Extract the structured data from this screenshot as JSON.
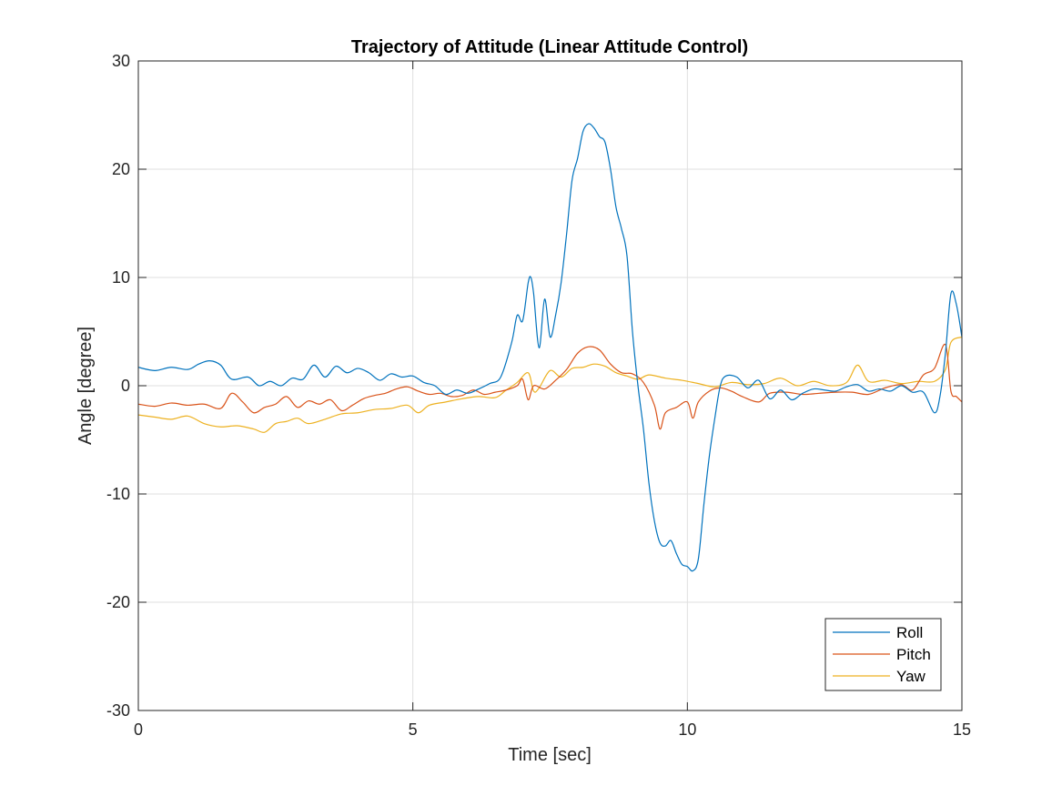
{
  "chart_data": {
    "type": "line",
    "title": "Trajectory of Attitude (Linear Attitude Control)",
    "xlabel": "Time [sec]",
    "ylabel": "Angle [degree]",
    "xlim": [
      0,
      15
    ],
    "ylim": [
      -30,
      30
    ],
    "xticks": [
      0,
      5,
      10,
      15
    ],
    "yticks": [
      -30,
      -20,
      -10,
      0,
      10,
      20,
      30
    ],
    "xtick_labels": [
      "0",
      "5",
      "10",
      "15"
    ],
    "ytick_labels": [
      "-30",
      "-20",
      "-10",
      "0",
      "10",
      "20",
      "30"
    ],
    "grid": true,
    "legend_position": "bottom-right",
    "series": [
      {
        "name": "Roll",
        "color": "#0072BD",
        "points": [
          [
            0,
            1.7
          ],
          [
            0.3,
            1.4
          ],
          [
            0.6,
            1.7
          ],
          [
            0.9,
            1.5
          ],
          [
            1.1,
            2.0
          ],
          [
            1.3,
            2.3
          ],
          [
            1.5,
            1.9
          ],
          [
            1.7,
            0.6
          ],
          [
            2.0,
            0.8
          ],
          [
            2.2,
            0.0
          ],
          [
            2.4,
            0.4
          ],
          [
            2.6,
            0.0
          ],
          [
            2.8,
            0.7
          ],
          [
            3.0,
            0.6
          ],
          [
            3.2,
            1.9
          ],
          [
            3.4,
            0.8
          ],
          [
            3.6,
            1.8
          ],
          [
            3.8,
            1.2
          ],
          [
            4.0,
            1.6
          ],
          [
            4.2,
            1.2
          ],
          [
            4.4,
            0.5
          ],
          [
            4.6,
            1.1
          ],
          [
            4.8,
            0.8
          ],
          [
            5.0,
            0.9
          ],
          [
            5.2,
            0.3
          ],
          [
            5.4,
            0.0
          ],
          [
            5.6,
            -0.8
          ],
          [
            5.8,
            -0.4
          ],
          [
            6.0,
            -0.7
          ],
          [
            6.2,
            -0.3
          ],
          [
            6.4,
            0.2
          ],
          [
            6.6,
            0.8
          ],
          [
            6.8,
            4.0
          ],
          [
            6.9,
            6.5
          ],
          [
            7.0,
            6.0
          ],
          [
            7.1,
            9.5
          ],
          [
            7.15,
            10.0
          ],
          [
            7.2,
            8.5
          ],
          [
            7.3,
            3.5
          ],
          [
            7.4,
            8.0
          ],
          [
            7.5,
            4.5
          ],
          [
            7.6,
            6.5
          ],
          [
            7.7,
            9.5
          ],
          [
            7.8,
            14.0
          ],
          [
            7.9,
            19.0
          ],
          [
            8.0,
            21.0
          ],
          [
            8.1,
            23.5
          ],
          [
            8.2,
            24.2
          ],
          [
            8.3,
            23.8
          ],
          [
            8.4,
            23.0
          ],
          [
            8.5,
            22.5
          ],
          [
            8.6,
            20.0
          ],
          [
            8.7,
            16.5
          ],
          [
            8.8,
            14.5
          ],
          [
            8.9,
            12.0
          ],
          [
            9.0,
            5.0
          ],
          [
            9.1,
            0.0
          ],
          [
            9.2,
            -4.0
          ],
          [
            9.3,
            -9.0
          ],
          [
            9.4,
            -12.5
          ],
          [
            9.5,
            -14.5
          ],
          [
            9.6,
            -14.8
          ],
          [
            9.7,
            -14.3
          ],
          [
            9.8,
            -15.5
          ],
          [
            9.9,
            -16.5
          ],
          [
            10.0,
            -16.7
          ],
          [
            10.1,
            -17.1
          ],
          [
            10.2,
            -16.0
          ],
          [
            10.3,
            -11.0
          ],
          [
            10.4,
            -6.5
          ],
          [
            10.5,
            -3.0
          ],
          [
            10.6,
            0.0
          ],
          [
            10.7,
            0.9
          ],
          [
            10.9,
            0.8
          ],
          [
            11.1,
            -0.2
          ],
          [
            11.3,
            0.5
          ],
          [
            11.5,
            -1.2
          ],
          [
            11.7,
            -0.4
          ],
          [
            11.9,
            -1.3
          ],
          [
            12.1,
            -0.7
          ],
          [
            12.3,
            -0.3
          ],
          [
            12.5,
            -0.4
          ],
          [
            12.7,
            -0.5
          ],
          [
            12.9,
            -0.1
          ],
          [
            13.1,
            0.1
          ],
          [
            13.3,
            -0.5
          ],
          [
            13.5,
            -0.3
          ],
          [
            13.7,
            -0.5
          ],
          [
            13.9,
            0.0
          ],
          [
            14.1,
            -0.6
          ],
          [
            14.3,
            -0.6
          ],
          [
            14.5,
            -2.5
          ],
          [
            14.6,
            -1.0
          ],
          [
            14.7,
            3.0
          ],
          [
            14.8,
            8.5
          ],
          [
            14.9,
            7.5
          ],
          [
            15.0,
            4.5
          ]
        ]
      },
      {
        "name": "Pitch",
        "color": "#D95319",
        "points": [
          [
            0,
            -1.7
          ],
          [
            0.3,
            -1.9
          ],
          [
            0.6,
            -1.6
          ],
          [
            0.9,
            -1.8
          ],
          [
            1.2,
            -1.7
          ],
          [
            1.5,
            -2.1
          ],
          [
            1.7,
            -0.7
          ],
          [
            1.9,
            -1.5
          ],
          [
            2.1,
            -2.5
          ],
          [
            2.3,
            -2.0
          ],
          [
            2.5,
            -1.7
          ],
          [
            2.7,
            -1.0
          ],
          [
            2.9,
            -2.0
          ],
          [
            3.1,
            -1.4
          ],
          [
            3.3,
            -1.7
          ],
          [
            3.5,
            -1.3
          ],
          [
            3.7,
            -2.3
          ],
          [
            3.9,
            -1.8
          ],
          [
            4.1,
            -1.2
          ],
          [
            4.3,
            -0.9
          ],
          [
            4.5,
            -0.7
          ],
          [
            4.7,
            -0.3
          ],
          [
            4.9,
            -0.1
          ],
          [
            5.1,
            -0.5
          ],
          [
            5.3,
            -0.8
          ],
          [
            5.5,
            -0.7
          ],
          [
            5.7,
            -1.0
          ],
          [
            5.9,
            -0.9
          ],
          [
            6.1,
            -0.4
          ],
          [
            6.3,
            -0.8
          ],
          [
            6.5,
            -0.6
          ],
          [
            6.7,
            -0.4
          ],
          [
            6.9,
            0.0
          ],
          [
            7.0,
            0.6
          ],
          [
            7.1,
            -1.3
          ],
          [
            7.2,
            0.0
          ],
          [
            7.4,
            -0.3
          ],
          [
            7.6,
            0.5
          ],
          [
            7.8,
            1.5
          ],
          [
            8.0,
            3.0
          ],
          [
            8.2,
            3.6
          ],
          [
            8.4,
            3.3
          ],
          [
            8.6,
            2.0
          ],
          [
            8.8,
            1.2
          ],
          [
            9.0,
            1.1
          ],
          [
            9.2,
            0.3
          ],
          [
            9.4,
            -1.8
          ],
          [
            9.5,
            -4.0
          ],
          [
            9.6,
            -2.5
          ],
          [
            9.8,
            -2.0
          ],
          [
            10.0,
            -1.5
          ],
          [
            10.1,
            -3.0
          ],
          [
            10.2,
            -1.5
          ],
          [
            10.4,
            -0.5
          ],
          [
            10.6,
            -0.2
          ],
          [
            10.8,
            -0.5
          ],
          [
            11.0,
            -1.0
          ],
          [
            11.3,
            -1.5
          ],
          [
            11.5,
            -0.7
          ],
          [
            11.8,
            -0.6
          ],
          [
            12.1,
            -0.8
          ],
          [
            12.4,
            -0.7
          ],
          [
            12.7,
            -0.6
          ],
          [
            13.0,
            -0.6
          ],
          [
            13.3,
            -0.8
          ],
          [
            13.6,
            -0.2
          ],
          [
            13.9,
            0.1
          ],
          [
            14.1,
            -0.4
          ],
          [
            14.3,
            1.0
          ],
          [
            14.5,
            1.6
          ],
          [
            14.7,
            3.8
          ],
          [
            14.8,
            -0.5
          ],
          [
            14.9,
            -1.0
          ],
          [
            15.0,
            -1.5
          ]
        ]
      },
      {
        "name": "Yaw",
        "color": "#EDB120",
        "points": [
          [
            0,
            -2.7
          ],
          [
            0.3,
            -2.9
          ],
          [
            0.6,
            -3.1
          ],
          [
            0.9,
            -2.8
          ],
          [
            1.2,
            -3.5
          ],
          [
            1.5,
            -3.8
          ],
          [
            1.8,
            -3.7
          ],
          [
            2.1,
            -4.0
          ],
          [
            2.3,
            -4.3
          ],
          [
            2.5,
            -3.5
          ],
          [
            2.7,
            -3.3
          ],
          [
            2.9,
            -3.0
          ],
          [
            3.1,
            -3.5
          ],
          [
            3.4,
            -3.1
          ],
          [
            3.7,
            -2.6
          ],
          [
            4.0,
            -2.5
          ],
          [
            4.3,
            -2.2
          ],
          [
            4.6,
            -2.1
          ],
          [
            4.9,
            -1.8
          ],
          [
            5.1,
            -2.5
          ],
          [
            5.3,
            -1.8
          ],
          [
            5.6,
            -1.5
          ],
          [
            5.9,
            -1.2
          ],
          [
            6.2,
            -1.0
          ],
          [
            6.5,
            -1.1
          ],
          [
            6.7,
            -0.4
          ],
          [
            6.9,
            0.3
          ],
          [
            7.1,
            1.2
          ],
          [
            7.2,
            -0.5
          ],
          [
            7.3,
            -0.2
          ],
          [
            7.5,
            1.4
          ],
          [
            7.7,
            0.8
          ],
          [
            7.9,
            1.6
          ],
          [
            8.1,
            1.7
          ],
          [
            8.3,
            2.0
          ],
          [
            8.5,
            1.8
          ],
          [
            8.7,
            1.2
          ],
          [
            8.9,
            0.9
          ],
          [
            9.1,
            0.6
          ],
          [
            9.3,
            1.0
          ],
          [
            9.6,
            0.7
          ],
          [
            9.9,
            0.5
          ],
          [
            10.2,
            0.2
          ],
          [
            10.5,
            -0.1
          ],
          [
            10.8,
            0.3
          ],
          [
            11.1,
            0.1
          ],
          [
            11.4,
            0.2
          ],
          [
            11.7,
            0.7
          ],
          [
            12.0,
            0.0
          ],
          [
            12.3,
            0.4
          ],
          [
            12.6,
            0.0
          ],
          [
            12.9,
            0.3
          ],
          [
            13.1,
            1.9
          ],
          [
            13.3,
            0.4
          ],
          [
            13.6,
            0.5
          ],
          [
            13.9,
            0.2
          ],
          [
            14.2,
            0.4
          ],
          [
            14.5,
            0.4
          ],
          [
            14.7,
            1.5
          ],
          [
            14.8,
            4.0
          ],
          [
            15.0,
            4.5
          ]
        ]
      }
    ]
  }
}
